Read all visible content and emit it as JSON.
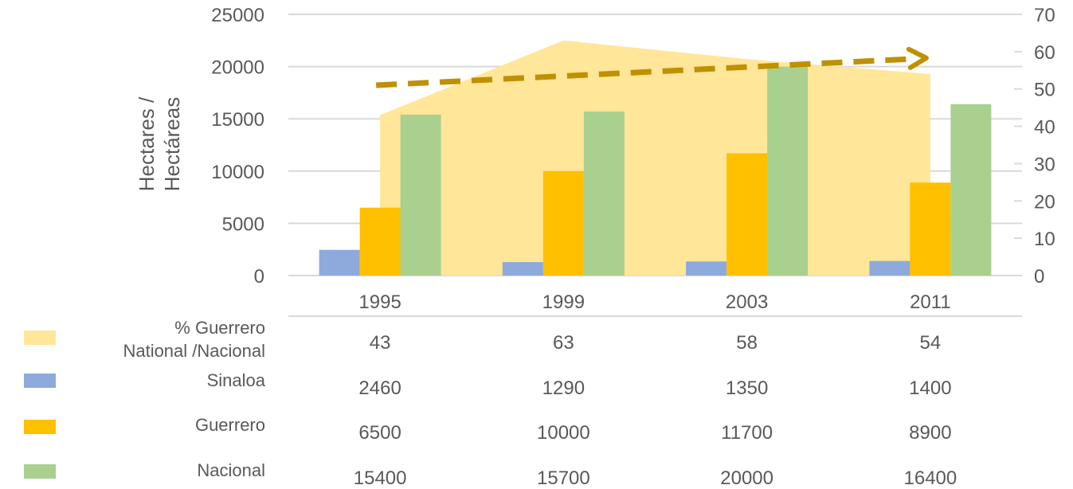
{
  "chart_data": {
    "type": "bar",
    "categories": [
      "1995",
      "1999",
      "2003",
      "2011"
    ],
    "ylabel": "Hectares / Hectáreas",
    "ylim": [
      0,
      25000
    ],
    "y_ticks": [
      "0",
      "5000",
      "10000",
      "15000",
      "20000",
      "25000"
    ],
    "y2lim": [
      0,
      70
    ],
    "y2_ticks": [
      "0",
      "10",
      "20",
      "30",
      "40",
      "50",
      "60",
      "70"
    ],
    "grid": true,
    "series": [
      {
        "name": "% Guerrero National /Nacional",
        "kind": "area",
        "axis": "secondary",
        "values": [
          43,
          63,
          58,
          54
        ],
        "labels": [
          "43",
          "63",
          "58",
          "54"
        ],
        "color": "#FFE699"
      },
      {
        "name": "Sinaloa",
        "kind": "bar",
        "axis": "primary",
        "values": [
          2460,
          1290,
          1350,
          1400
        ],
        "labels": [
          "2460",
          "1290",
          "1350",
          "1400"
        ],
        "color": "#8EA9DB"
      },
      {
        "name": "Guerrero",
        "kind": "bar",
        "axis": "primary",
        "values": [
          6500,
          10000,
          11700,
          8900
        ],
        "labels": [
          "6500",
          "10000",
          "11700",
          "8900"
        ],
        "color": "#FFC000"
      },
      {
        "name": "Nacional",
        "kind": "bar",
        "axis": "primary",
        "values": [
          15400,
          15700,
          20000,
          16400
        ],
        "labels": [
          "15400",
          "15700",
          "20000",
          "16400"
        ],
        "color": "#A9D08E"
      }
    ],
    "trend_arrow": {
      "style": "dashed",
      "color": "#BF9000",
      "direction": "up"
    },
    "data_table": true
  }
}
